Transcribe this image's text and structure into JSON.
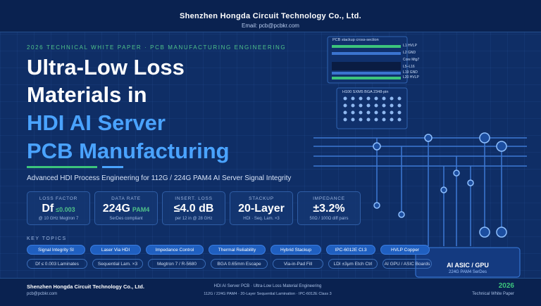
{
  "header": {
    "company": "Shenzhen Hongda Circuit Technology Co., Ltd.",
    "email": "Email: pcb@pcbkr.com"
  },
  "kicker": "2026 TECHNICAL WHITE PAPER · PCB MANUFACTURING ENGINEERING",
  "title": {
    "lines": [
      "Ultra-Low Loss",
      "Materials in",
      "HDI AI Server",
      "PCB Manufacturing"
    ]
  },
  "subtitle": "Advanced HDI Process Engineering for 112G / 224G PAM4 AI Server Signal Integrity",
  "stats": [
    {
      "label": "LOSS FACTOR",
      "value": "Df",
      "accent": "≤0.003",
      "note": "@ 10 GHz Megtron 7"
    },
    {
      "label": "DATA RATE",
      "value": "224G",
      "accent": "PAM4",
      "note": "SerDes compliant"
    },
    {
      "label": "INSERT. LOSS",
      "value": "≤4.0 dB",
      "note": "per 12 in @ 28 GHz"
    },
    {
      "label": "STACKUP",
      "value": "20-Layer",
      "note": "HDI · Seq. Lam. ×3"
    },
    {
      "label": "IMPEDANCE",
      "value": "±3.2%",
      "note": "50Ω / 100Ω diff pairs"
    }
  ],
  "topics": {
    "heading": "KEY TOPICS",
    "primary": [
      "Signal Integrity SI",
      "Laser Via HDI",
      "Impedance Control",
      "Thermal Reliability",
      "Hybrid Stackup",
      "IPC-6012E Cl.3",
      "HVLP Copper"
    ],
    "secondary": [
      "Df ≤ 0.003 Laminates",
      "Sequential Lam. ×3",
      "Megtron 7 / R-5680",
      "BGA 0.65mm Escape",
      "Via-in-Pad Fill",
      "LDI ±3μm Etch Ctrl",
      "AI GPU / ASIC Boards"
    ]
  },
  "stackup": {
    "title": "PCB stackup cross-section",
    "layers": [
      "L1 HVLP",
      "L2 GND",
      "Core Mtg7",
      "L5–L16",
      "L19 GND",
      "L20 HVLP"
    ]
  },
  "bga": {
    "title": "H100 SXM5 BGA 2348-pin"
  },
  "asic": {
    "title": "AI ASIC / GPU",
    "subtitle": "224G PAM4 SerDes"
  },
  "footer": {
    "company": "Shenzhen Hongda Circuit Technology Co., Ltd.",
    "email": "pcb@pcbkr.com",
    "line1": "HDI AI Server PCB · Ultra-Low Loss Material Engineering",
    "line2": "112G / 224G PAM4 · 20-Layer Sequential Lamination · IPC-6012E Class 3",
    "year": "2026",
    "doc": "Technical White Paper"
  }
}
